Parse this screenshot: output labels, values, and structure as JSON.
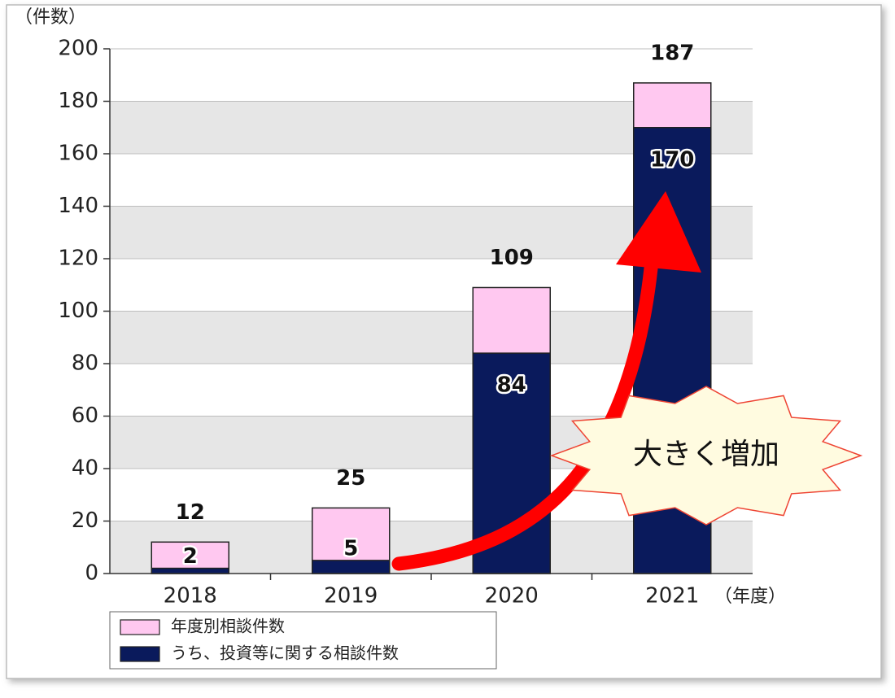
{
  "chart_data": {
    "type": "bar",
    "barmode": "overlay",
    "y_label": "（件数）",
    "x_label": "（年度）",
    "categories": [
      "2018",
      "2019",
      "2020",
      "2021"
    ],
    "series": [
      {
        "name": "年度別相談件数",
        "color": "#ffc8f0",
        "values": [
          12,
          25,
          109,
          187
        ]
      },
      {
        "name": "うち、投資等に関する相談件数",
        "color": "#0a1a5c",
        "values": [
          2,
          5,
          84,
          170
        ]
      }
    ],
    "ylim": [
      0,
      200
    ],
    "yticks": [
      0,
      20,
      40,
      60,
      80,
      100,
      120,
      140,
      160,
      180,
      200
    ],
    "annotation": "大きく増加"
  }
}
